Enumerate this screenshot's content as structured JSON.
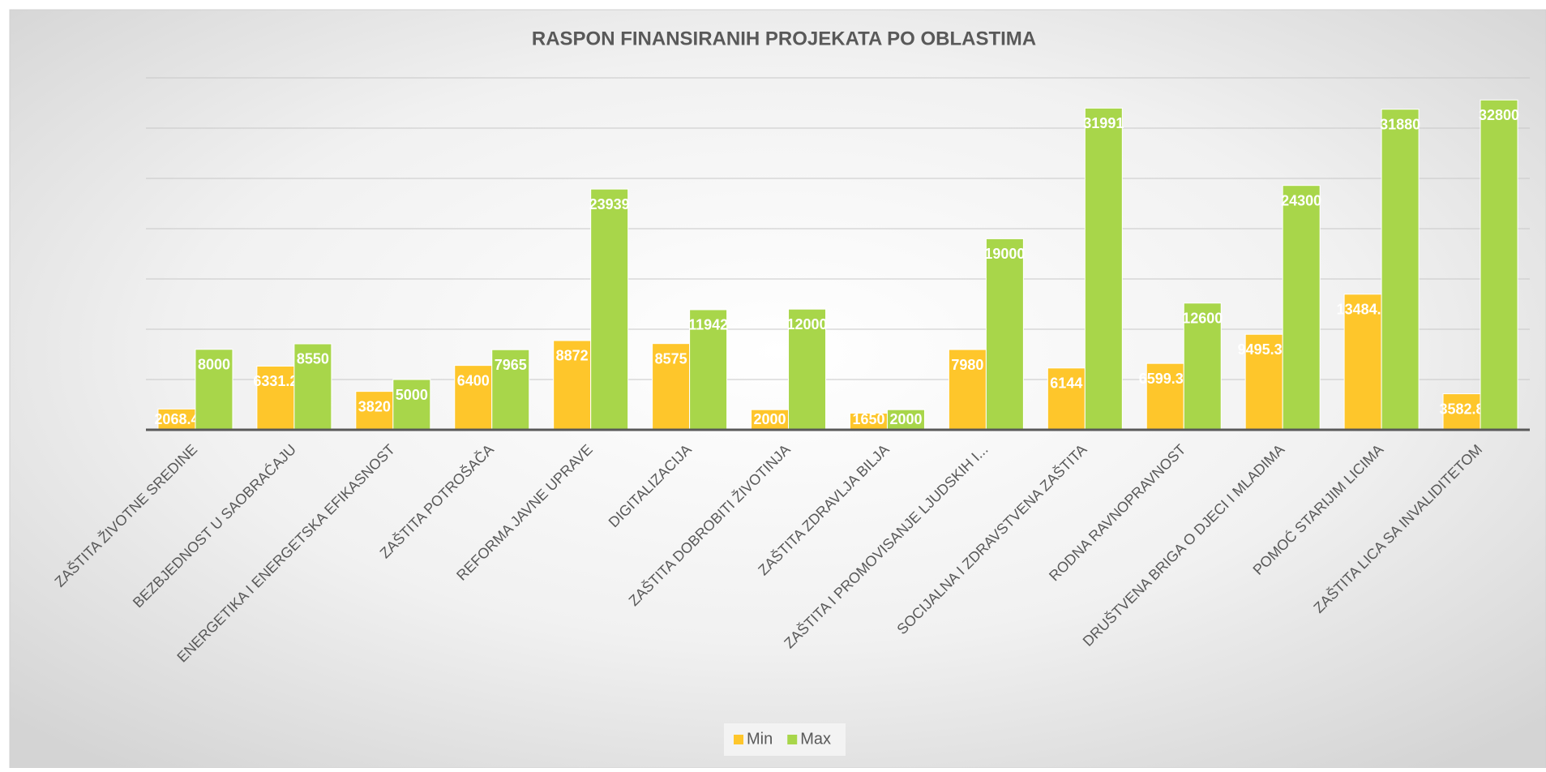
{
  "chart_data": {
    "type": "bar",
    "title": "RASPON FINANSIRANIH PROJEKATA PO OBLASTIMA",
    "categories": [
      "ZAŠTITA ŽIVOTNE SREDINE",
      "BEZBJEDNOST U SAOBRAĆAJU",
      "ENERGETIKA I ENERGETSKA EFIKASNOST",
      "ZAŠTITA POTROŠAČA",
      "REFORMA JAVNE UPRAVE",
      "DIGITALIZACIJA",
      "ZAŠTITA DOBROBITI ŽIVOTINJA",
      "ZAŠTITA ZDRAVLJA BILJA",
      "ZAŠTITA I PROMOVISANJE LJUDSKIH I...",
      "SOCIJALNA I ZDRAVSTVENA ZAŠTITA",
      "RODNA RAVNOPRAVNOST",
      "DRUŠTVENA BRIGA O DJECI I MLADIMA",
      "POMOĆ STARIJIM LICIMA",
      "ZAŠTITA LICA SA INVALIDITETOM"
    ],
    "series": [
      {
        "name": "Min",
        "color": "#fec62b",
        "values": [
          2068.4,
          6331.2,
          3820,
          6400,
          8872,
          8575,
          2000,
          1650,
          7980,
          6144,
          6599.36,
          9495.39,
          13484.8,
          3582.8
        ]
      },
      {
        "name": "Max",
        "color": "#a8d64a",
        "values": [
          8000,
          8550,
          5000,
          7965,
          23939,
          11942,
          12000,
          2000,
          19000,
          31991,
          12600,
          24300,
          31880,
          32800
        ]
      }
    ],
    "ylim": [
      0,
      35000
    ],
    "yticks": [
      0,
      5000,
      10000,
      15000,
      20000,
      25000,
      30000,
      35000
    ],
    "grid": true,
    "legend": "bottom"
  }
}
